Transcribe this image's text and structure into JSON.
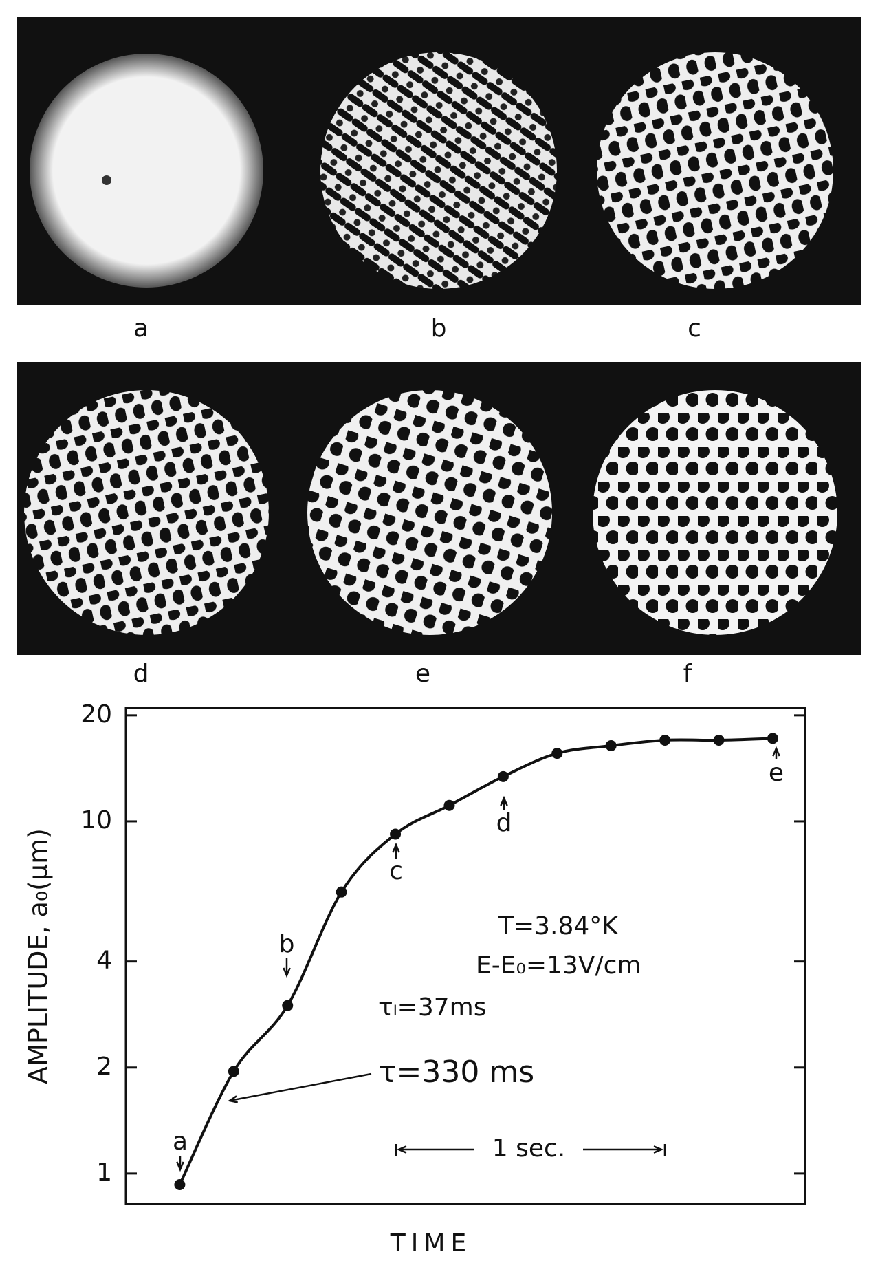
{
  "photos": {
    "labels": [
      "a",
      "b",
      "c",
      "d",
      "e",
      "f"
    ]
  },
  "chart_data": {
    "type": "line",
    "xlabel": "TIME",
    "ylabel": "AMPLITUDE, a₀(μm)",
    "x": [
      0,
      0.2,
      0.4,
      0.6,
      0.8,
      1.0,
      1.2,
      1.4,
      1.6,
      1.8,
      2.0,
      2.2
    ],
    "series": [
      {
        "color": "#111111",
        "values": [
          0.93,
          1.95,
          3.0,
          6.3,
          9.2,
          11.1,
          13.4,
          15.6,
          16.4,
          17.0,
          17.0,
          17.2
        ]
      }
    ],
    "xlim": [
      -0.2,
      2.32
    ],
    "ylim": [
      0.82,
      21
    ],
    "log_y": true,
    "yticks": [
      1,
      2,
      4,
      10,
      20
    ],
    "annotations": [
      "a",
      "b",
      "c",
      "d",
      "e",
      "T=3.84°K",
      "E-E₀=13V/cm",
      "τₗ=37ms",
      "τ=330 ms",
      "1 sec."
    ]
  }
}
